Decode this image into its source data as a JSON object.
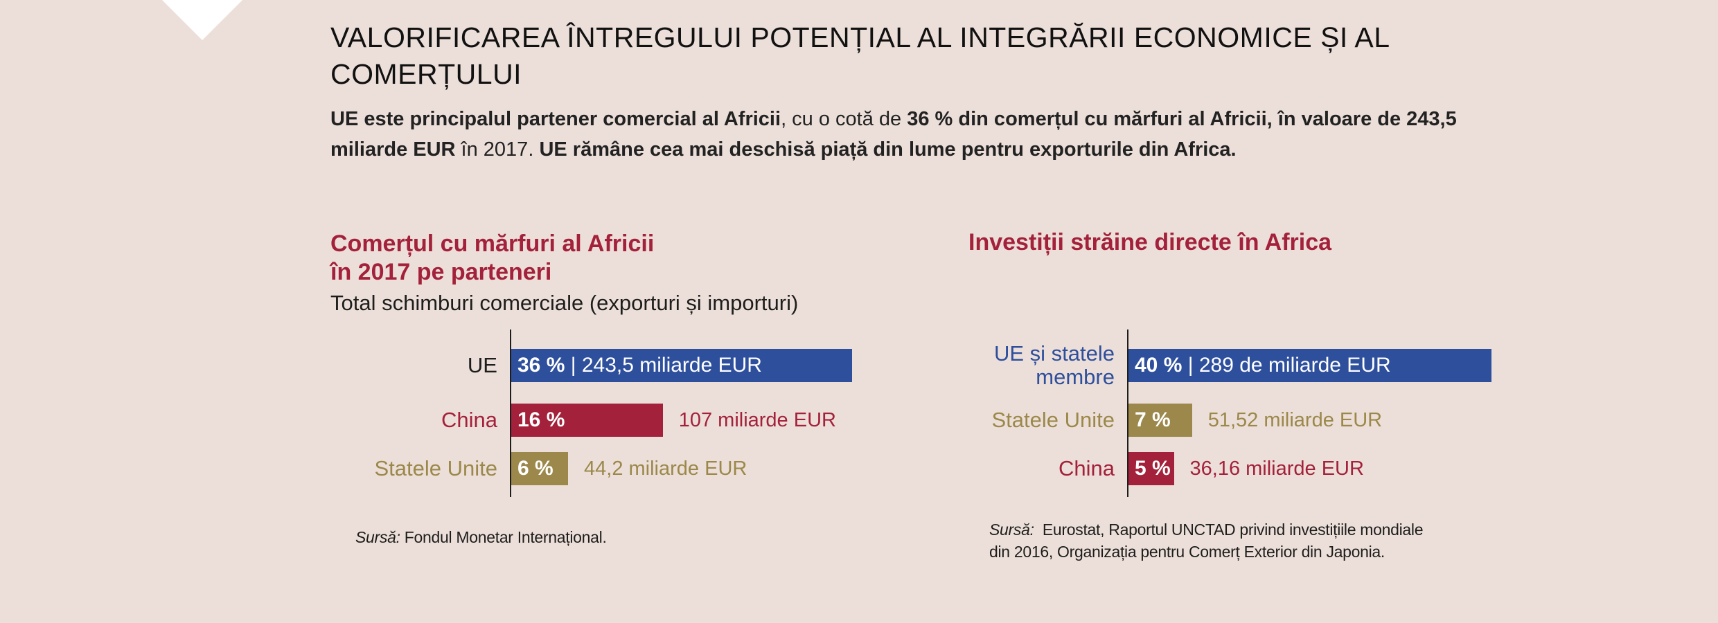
{
  "header": {
    "title": "VALORIFICAREA ÎNTREGULUI POTENȚIAL AL INTEGRĂRII ECONOMICE ȘI AL COMERȚULUI",
    "intro": [
      {
        "text": "UE este principalul partener comercial al Africii",
        "bold": true
      },
      {
        "text": ", cu o cotă de ",
        "bold": false
      },
      {
        "text": "36 % din comerțul cu mărfuri al Africii, în valoare de 243,5 miliarde EUR",
        "bold": true
      },
      {
        "text": " în 2017. ",
        "bold": false
      },
      {
        "text": "UE rămâne cea mai deschisă piață din lume pentru exporturile din Africa.",
        "bold": true
      }
    ]
  },
  "colors": {
    "background": "#ecdfd9",
    "blue": "#2e4f9c",
    "red": "#a3213a",
    "gold": "#9b884a"
  },
  "chart_data": [
    {
      "type": "bar",
      "orientation": "horizontal",
      "title": "Comerțul cu mărfuri al Africii în 2017 pe parteneri",
      "title_lines": [
        "Comerțul cu mărfuri al Africii",
        "în 2017 pe parteneri"
      ],
      "subtitle": "Total schimburi comerciale (exporturi și importuri)",
      "categories": [
        "UE",
        "China",
        "Statele Unite"
      ],
      "values": [
        36,
        16,
        6
      ],
      "percent_labels": [
        "36 %",
        "16 %",
        "6 %"
      ],
      "amount_labels": [
        "243,5 miliarde EUR",
        "107 miliarde EUR",
        "44,2 miliarde EUR"
      ],
      "colors": [
        "#2e4f9c",
        "#a3213a",
        "#9b884a"
      ],
      "source_label": "Sursă:",
      "source": "Fondul Monetar Internațional."
    },
    {
      "type": "bar",
      "orientation": "horizontal",
      "title": "Investiții străine directe în Africa",
      "title_lines": [
        "Investiții străine directe în Africa"
      ],
      "categories": [
        "UE și statele membre",
        "Statele Unite",
        "China"
      ],
      "category_lines": [
        [
          "UE și statele",
          "membre"
        ],
        [
          "Statele Unite"
        ],
        [
          "China"
        ]
      ],
      "values": [
        40,
        7,
        5
      ],
      "percent_labels": [
        "40 %",
        "7 %",
        "5 %"
      ],
      "amount_labels": [
        "289 de miliarde EUR",
        "51,52 miliarde EUR",
        "36,16 miliarde EUR"
      ],
      "colors": [
        "#2e4f9c",
        "#9b884a",
        "#a3213a"
      ],
      "source_label": "Sursă:",
      "source_lines": [
        "Eurostat, Raportul UNCTAD privind investițiile mondiale",
        "din 2016, Organizația pentru Comerț Exterior din Japonia."
      ]
    }
  ]
}
